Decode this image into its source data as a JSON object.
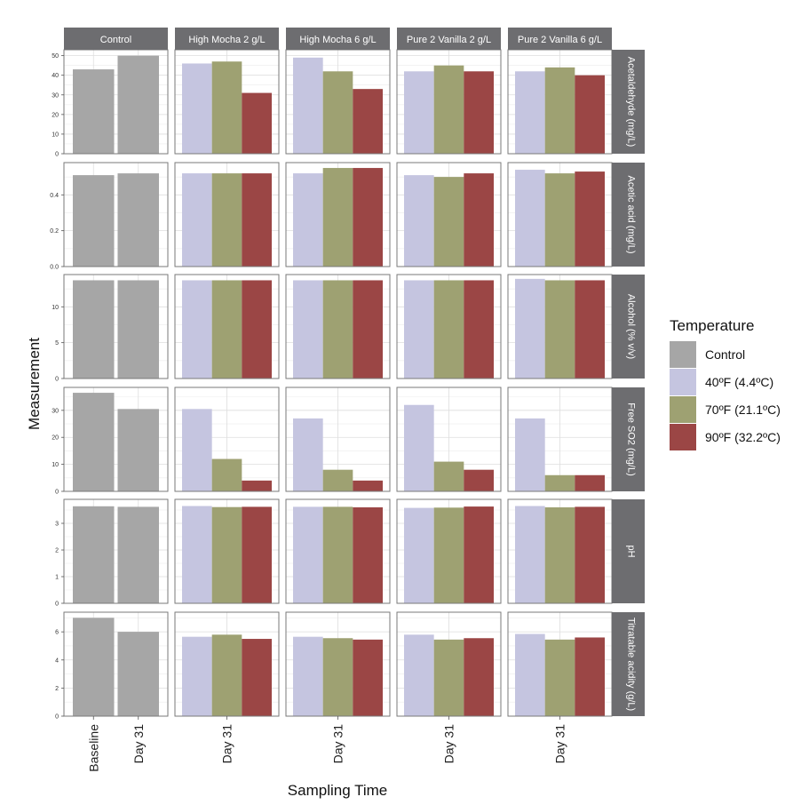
{
  "chart_data": {
    "type": "bar",
    "xlabel": "Sampling Time",
    "ylabel": "Measurement",
    "legend": {
      "title": "Temperature",
      "position": "right",
      "entries": [
        {
          "name": "Control",
          "color": "#a6a6a6"
        },
        {
          "name": "40ºF (4.4ºC)",
          "color": "#c5c5e0"
        },
        {
          "name": "70ºF (21.1ºC)",
          "color": "#9ea172"
        },
        {
          "name": "90ºF (32.2ºC)",
          "color": "#9b4645"
        }
      ]
    },
    "columns": [
      "Control",
      "High Mocha 2 g/L",
      "High Mocha 6 g/L",
      "Pure 2 Vanilla 2 g/L",
      "Pure 2 Vanilla 6 g/L"
    ],
    "rows": [
      {
        "label": "Acetaldehyde (mg/L)",
        "ylim": [
          0,
          53
        ],
        "ticks": [
          0,
          10,
          20,
          30,
          40,
          50
        ],
        "tick_labels": [
          "0",
          "10",
          "20",
          "30",
          "40",
          "50"
        ]
      },
      {
        "label": "Acetic acid (mg/L)",
        "ylim": [
          0,
          0.58
        ],
        "ticks": [
          0,
          0.2,
          0.4
        ],
        "tick_labels": [
          "0.0",
          "0.2",
          "0.4"
        ]
      },
      {
        "label": "Alcohol (% v/v)",
        "ylim": [
          0,
          14.5
        ],
        "ticks": [
          0,
          5,
          10
        ],
        "tick_labels": [
          "0",
          "5",
          "10"
        ]
      },
      {
        "label": "Free SO2 (mg/L)",
        "ylim": [
          0,
          38.5
        ],
        "ticks": [
          0,
          10,
          20,
          30
        ],
        "tick_labels": [
          "0",
          "10",
          "20",
          "30"
        ]
      },
      {
        "label": "pH",
        "ylim": [
          0,
          3.9
        ],
        "ticks": [
          0,
          1,
          2,
          3
        ],
        "tick_labels": [
          "0",
          "1",
          "2",
          "3"
        ]
      },
      {
        "label": "Titratable acidity (g/L)",
        "ylim": [
          0,
          7.4
        ],
        "ticks": [
          0,
          2,
          4,
          6
        ],
        "tick_labels": [
          "0",
          "2",
          "4",
          "6"
        ]
      }
    ],
    "control_categories": [
      "Baseline",
      "Day 31"
    ],
    "treatment_category": "Day 31",
    "control_values": [
      [
        43,
        50
      ],
      [
        0.51,
        0.52
      ],
      [
        13.7,
        13.7
      ],
      [
        36.5,
        30.5
      ],
      [
        3.64,
        3.62
      ],
      [
        7.0,
        6.0
      ]
    ],
    "treatment_values": [
      [
        [
          46,
          47,
          31
        ],
        [
          49,
          42,
          33
        ],
        [
          42,
          45,
          42
        ],
        [
          42,
          44,
          40
        ]
      ],
      [
        [
          0.52,
          0.52,
          0.52
        ],
        [
          0.52,
          0.55,
          0.55
        ],
        [
          0.51,
          0.5,
          0.52
        ],
        [
          0.54,
          0.52,
          0.53
        ]
      ],
      [
        [
          13.7,
          13.7,
          13.7
        ],
        [
          13.7,
          13.7,
          13.7
        ],
        [
          13.7,
          13.7,
          13.7
        ],
        [
          13.9,
          13.7,
          13.7
        ]
      ],
      [
        [
          30.5,
          12,
          4
        ],
        [
          27,
          8,
          4
        ],
        [
          32,
          11,
          8
        ],
        [
          27,
          6,
          6
        ]
      ],
      [
        [
          3.65,
          3.61,
          3.62
        ],
        [
          3.62,
          3.62,
          3.6
        ],
        [
          3.58,
          3.59,
          3.63
        ],
        [
          3.65,
          3.6,
          3.62
        ]
      ],
      [
        [
          5.65,
          5.8,
          5.5
        ],
        [
          5.65,
          5.55,
          5.45
        ],
        [
          5.8,
          5.45,
          5.55
        ],
        [
          5.85,
          5.45,
          5.6
        ]
      ]
    ]
  }
}
